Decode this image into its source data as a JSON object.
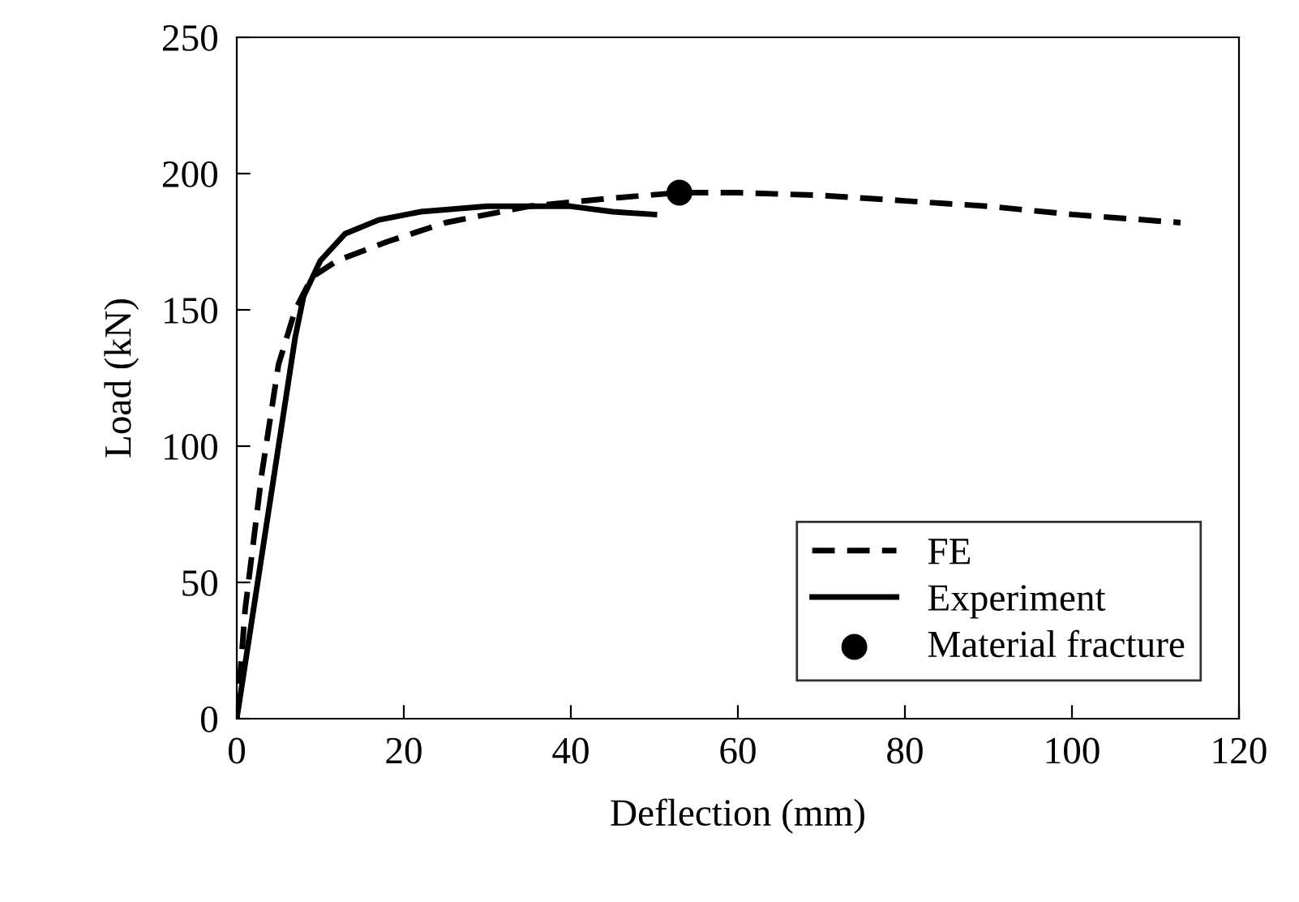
{
  "chart_data": {
    "type": "line",
    "xlabel": "Deflection (mm)",
    "ylabel": "Load (kN)",
    "xlim": [
      0,
      120
    ],
    "xticks": [
      0,
      20,
      40,
      60,
      80,
      100,
      120
    ],
    "ylim": [
      0,
      250
    ],
    "yticks": [
      0,
      50,
      100,
      150,
      200,
      250
    ],
    "legend": "bottom right",
    "grid": false,
    "series": [
      {
        "name": "FE",
        "color": "#000000",
        "line_style": "dashed",
        "marker": "none",
        "x": [
          0,
          1,
          3,
          5,
          7,
          9,
          12,
          18,
          25,
          35,
          45,
          53,
          60,
          70,
          80,
          90,
          100,
          113
        ],
        "values": [
          0,
          40,
          90,
          130,
          150,
          162,
          168,
          175,
          182,
          188,
          191,
          193,
          193,
          192,
          190,
          188,
          185,
          182
        ]
      },
      {
        "name": "Experiment",
        "color": "#000000",
        "line_style": "solid",
        "marker": "none",
        "x": [
          0,
          2,
          5,
          7,
          8,
          10,
          13,
          17,
          22,
          30,
          40,
          45,
          50
        ],
        "values": [
          0,
          40,
          100,
          140,
          155,
          168,
          178,
          183,
          186,
          188,
          188,
          186,
          185
        ]
      },
      {
        "name": "Material fracture",
        "type": "scatter",
        "color": "#000000",
        "marker": "circle",
        "x": [
          53
        ],
        "values": [
          193
        ]
      }
    ]
  }
}
